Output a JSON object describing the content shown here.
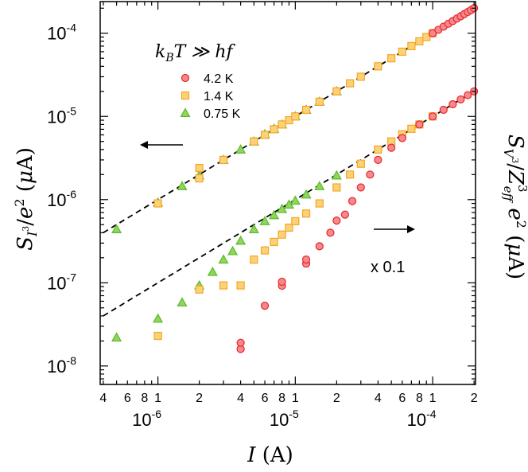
{
  "chart_data": {
    "type": "scatter",
    "x_scale": "log",
    "y_scale": "log",
    "xlim": [
      3.8e-07,
      0.000205
    ],
    "ylim": [
      6e-09,
      0.00024
    ],
    "xlabel": "I (A)",
    "ylabel_left": "S_{I^3}/e^2 (μA)",
    "ylabel_right": "S_{V^3}/Z^3_{eff} e^2 (μA)",
    "x_ticks": {
      "decades": [
        {
          "value": 1e-06,
          "base": "10",
          "exp": "-6"
        },
        {
          "value": 1e-05,
          "base": "10",
          "exp": "-5"
        },
        {
          "value": 0.0001,
          "base": "10",
          "exp": "-4"
        }
      ],
      "minor": [
        {
          "value": 4e-07,
          "label": "4"
        },
        {
          "value": 6e-07,
          "label": "6"
        },
        {
          "value": 8e-07,
          "label": "8"
        },
        {
          "value": 2e-06,
          "label": "2"
        },
        {
          "value": 4e-06,
          "label": "4"
        },
        {
          "value": 6e-06,
          "label": "6"
        },
        {
          "value": 8e-06,
          "label": "8"
        },
        {
          "value": 2e-05,
          "label": "2"
        },
        {
          "value": 4e-05,
          "label": "4"
        },
        {
          "value": 6e-05,
          "label": "6"
        },
        {
          "value": 8e-05,
          "label": "8"
        },
        {
          "value": 0.0002,
          "label": "2"
        }
      ]
    },
    "y_ticks": {
      "decades": [
        {
          "value": 1e-08,
          "base": "10",
          "exp": "-8"
        },
        {
          "value": 1e-07,
          "base": "10",
          "exp": "-7"
        },
        {
          "value": 1e-06,
          "base": "10",
          "exp": "-6"
        },
        {
          "value": 1e-05,
          "base": "10",
          "exp": "-5"
        },
        {
          "value": 0.0001,
          "base": "10",
          "exp": "-4"
        }
      ]
    },
    "legend": {
      "title": "k_B T ≫ hf",
      "position": "upper-left",
      "entries": [
        {
          "label": "4.2 K",
          "marker": "circle",
          "color": "#e8262a",
          "fill": "#f48a8c"
        },
        {
          "label": "1.4 K",
          "marker": "square",
          "color": "#f5a623",
          "fill": "#fbd27a"
        },
        {
          "label": "0.75 K",
          "marker": "triangle",
          "color": "#5cb82e",
          "fill": "#8fd65a"
        }
      ]
    },
    "fits": [
      {
        "name": "upper",
        "style": "dashed",
        "x": [
          4e-07,
          0.0002
        ],
        "y": [
          4e-07,
          0.0002
        ]
      },
      {
        "name": "lower",
        "style": "dashed",
        "x": [
          4e-07,
          0.0002
        ],
        "y": [
          4e-08,
          2e-05
        ]
      }
    ],
    "series": [
      {
        "name": "0.75 K",
        "set": "upper",
        "x": [
          5e-07,
          1e-06,
          1.5e-06,
          2e-06,
          3e-06,
          4e-06,
          5e-06,
          6e-06,
          7e-06,
          8e-06,
          1e-05,
          1.2e-05,
          1.5e-05,
          2e-05
        ],
        "y": [
          4.4e-07,
          9.2e-07,
          1.45e-06,
          1.95e-06,
          3e-06,
          4e-06,
          5e-06,
          6.1e-06,
          7.1e-06,
          8e-06,
          1e-05,
          1.2e-05,
          1.5e-05,
          2e-05
        ]
      },
      {
        "name": "1.4 K",
        "set": "upper",
        "x": [
          1e-06,
          2e-06,
          2e-06,
          3e-06,
          5e-06,
          6e-06,
          7e-06,
          8e-06,
          9e-06,
          1e-05,
          1.2e-05,
          1.5e-05,
          2e-05,
          2.5e-05,
          3e-05,
          4e-05,
          5e-05,
          6e-05,
          7e-05,
          8e-05,
          9e-05,
          0.0001
        ],
        "y": [
          9e-07,
          2.4e-06,
          1.8e-06,
          3e-06,
          5e-06,
          6e-06,
          7e-06,
          8e-06,
          9e-06,
          1e-05,
          1.2e-05,
          1.5e-05,
          2e-05,
          2.5e-05,
          3e-05,
          4e-05,
          5e-05,
          6e-05,
          7e-05,
          8e-05,
          9e-05,
          0.0001
        ]
      },
      {
        "name": "4.2 K",
        "set": "upper",
        "x": [
          0.0001,
          0.00011,
          0.00012,
          0.00013,
          0.00014,
          0.00015,
          0.00016,
          0.00017,
          0.00018,
          0.00019,
          0.0002
        ],
        "y": [
          0.0001,
          0.00011,
          0.00012,
          0.00013,
          0.00014,
          0.00015,
          0.00016,
          0.00017,
          0.00018,
          0.00019,
          0.0002
        ]
      },
      {
        "name": "0.75 K",
        "set": "lower",
        "x": [
          5e-07,
          1e-06,
          1.5e-06,
          2e-06,
          2.5e-06,
          3e-06,
          3.5e-06,
          4e-06,
          5e-06,
          6e-06,
          7e-06,
          8e-06,
          9e-06,
          1e-05,
          1.2e-05,
          1.5e-05,
          2e-05
        ],
        "y": [
          2.2e-08,
          3.7e-08,
          5.8e-08,
          9.3e-08,
          1.35e-07,
          1.9e-07,
          2.4e-07,
          3.2e-07,
          4.4e-07,
          5.5e-07,
          6.5e-07,
          7.7e-07,
          8.7e-07,
          9.7e-07,
          1.15e-06,
          1.45e-06,
          1.95e-06
        ]
      },
      {
        "name": "1.4 K",
        "set": "lower",
        "x": [
          1e-06,
          2e-06,
          3e-06,
          4e-06,
          5e-06,
          6e-06,
          7e-06,
          8e-06,
          9e-06,
          1e-05,
          1.2e-05,
          1.5e-05,
          2e-05,
          2.5e-05,
          3e-05,
          4e-05,
          5e-05,
          6e-05,
          7e-05,
          8e-05,
          0.0001
        ],
        "y": [
          2.3e-08,
          8.3e-08,
          9.3e-08,
          9.3e-08,
          1.9e-07,
          2.45e-07,
          3.1e-07,
          3.8e-07,
          4.6e-07,
          5.5e-07,
          6.8e-07,
          9e-07,
          1.4e-06,
          2e-06,
          2.7e-06,
          4e-06,
          5e-06,
          6.1e-06,
          7.1e-06,
          8e-06,
          1e-05
        ]
      },
      {
        "name": "4.2 K",
        "set": "lower",
        "x": [
          4e-06,
          4e-06,
          6e-06,
          8e-06,
          8e-06,
          1.2e-05,
          1.2e-05,
          1.5e-05,
          1.8e-05,
          2e-05,
          2.3e-05,
          2.6e-05,
          3e-05,
          3.5e-05,
          4e-05,
          5e-05,
          6e-05,
          8e-05,
          0.0001,
          0.00012,
          0.00014,
          0.00016,
          0.00018,
          0.0002
        ],
        "y": [
          1.6e-08,
          1.9e-08,
          5.3e-08,
          9.2e-08,
          1.03e-07,
          1.7e-07,
          1.9e-07,
          2.75e-07,
          4e-07,
          5.6e-07,
          6.6e-07,
          9.6e-07,
          1.4e-06,
          2e-06,
          3e-06,
          4.2e-06,
          5.5e-06,
          8e-06,
          1e-05,
          1.2e-05,
          1.4e-05,
          1.6e-05,
          1.8e-05,
          2e-05
        ]
      }
    ],
    "annotations": [
      {
        "text": "x 0.1"
      }
    ],
    "arrows": [
      {
        "direction": "left",
        "meaning": "left axis"
      },
      {
        "direction": "right",
        "meaning": "right axis"
      }
    ]
  }
}
